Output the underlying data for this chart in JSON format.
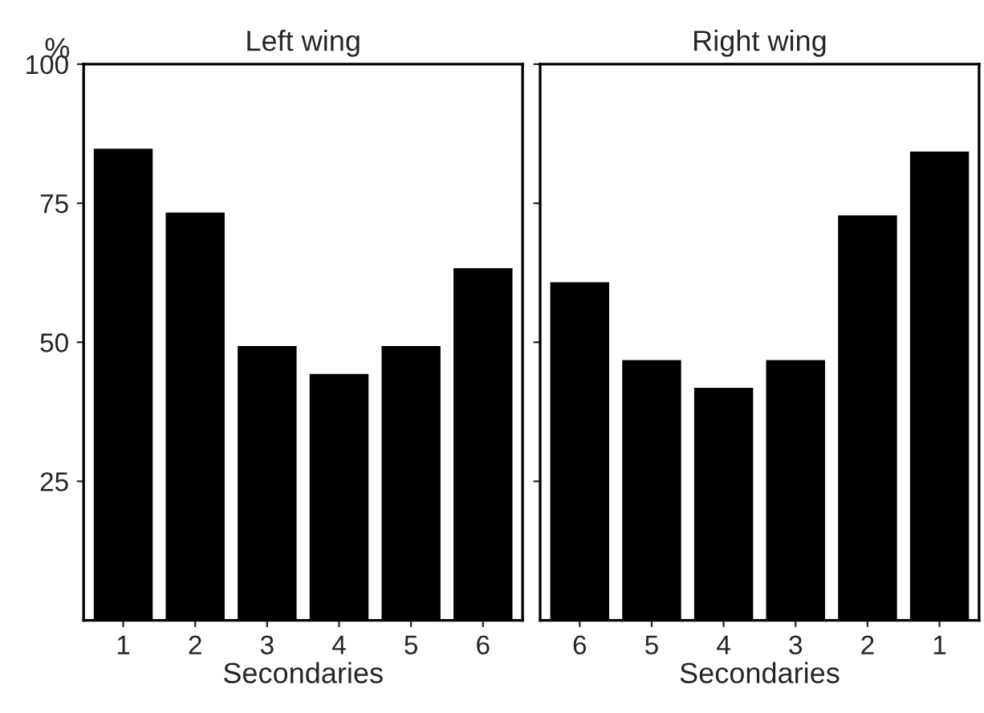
{
  "chart_data": [
    {
      "type": "bar",
      "title": "Left wing",
      "xlabel": "Secondaries",
      "ylabel": "%",
      "categories": [
        "1",
        "2",
        "3",
        "4",
        "5",
        "6"
      ],
      "values": [
        85,
        73.5,
        49.5,
        44.5,
        49.5,
        63.5
      ],
      "color": "#000000",
      "ylim": [
        0,
        100
      ],
      "yticks": [
        25,
        50,
        75,
        100
      ]
    },
    {
      "type": "bar",
      "title": "Right wing",
      "xlabel": "Secondaries",
      "categories": [
        "6",
        "5",
        "4",
        "3",
        "2",
        "1"
      ],
      "values": [
        61,
        47,
        42,
        47,
        73,
        84.5
      ],
      "color": "#000000",
      "ylim": [
        0,
        100
      ],
      "yticks": [
        25,
        50,
        75,
        100
      ],
      "tick_labels": "x"
    }
  ]
}
